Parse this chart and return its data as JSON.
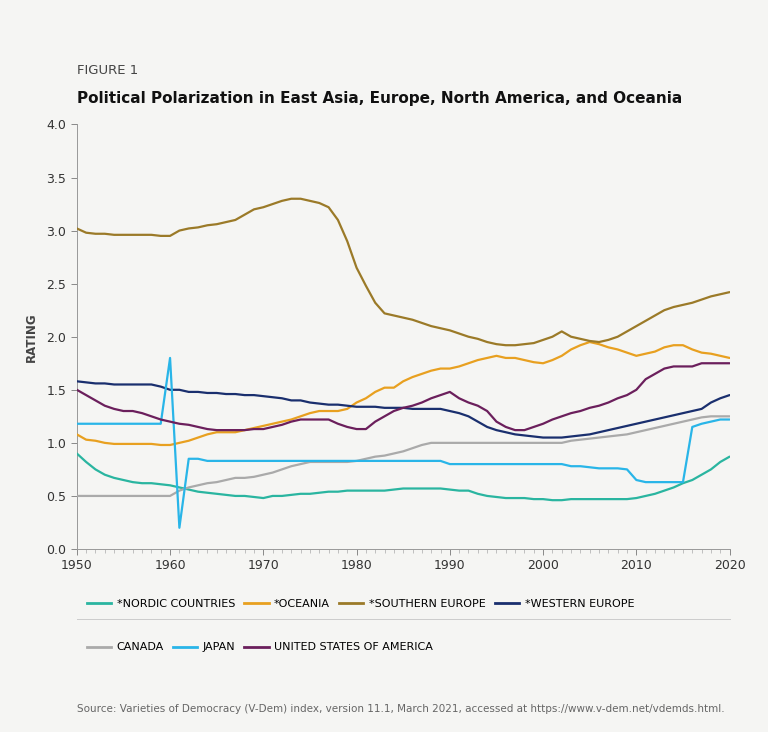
{
  "title_label": "FIGURE 1",
  "title": "Political Polarization in East Asia, Europe, North America, and Oceania",
  "source": "Source: Varieties of Democracy (V-Dem) index, version 11.1, March 2021, accessed at https://www.v-dem.net/vdemds.html.",
  "ylabel": "RATING",
  "xlim": [
    1950,
    2020
  ],
  "ylim": [
    0.0,
    4.0
  ],
  "yticks": [
    0.0,
    0.5,
    1.0,
    1.5,
    2.0,
    2.5,
    3.0,
    3.5,
    4.0
  ],
  "xticks": [
    1950,
    1960,
    1970,
    1980,
    1990,
    2000,
    2010,
    2020
  ],
  "background_color": "#f5f5f3",
  "series": {
    "nordic": {
      "label": "*NORDIC COUNTRIES",
      "color": "#2ab5a0",
      "linewidth": 1.6,
      "years": [
        1950,
        1951,
        1952,
        1953,
        1954,
        1955,
        1956,
        1957,
        1958,
        1959,
        1960,
        1961,
        1962,
        1963,
        1964,
        1965,
        1966,
        1967,
        1968,
        1969,
        1970,
        1971,
        1972,
        1973,
        1974,
        1975,
        1976,
        1977,
        1978,
        1979,
        1980,
        1981,
        1982,
        1983,
        1984,
        1985,
        1986,
        1987,
        1988,
        1989,
        1990,
        1991,
        1992,
        1993,
        1994,
        1995,
        1996,
        1997,
        1998,
        1999,
        2000,
        2001,
        2002,
        2003,
        2004,
        2005,
        2006,
        2007,
        2008,
        2009,
        2010,
        2011,
        2012,
        2013,
        2014,
        2015,
        2016,
        2017,
        2018,
        2019,
        2020
      ],
      "values": [
        0.9,
        0.82,
        0.75,
        0.7,
        0.67,
        0.65,
        0.63,
        0.62,
        0.62,
        0.61,
        0.6,
        0.58,
        0.56,
        0.54,
        0.53,
        0.52,
        0.51,
        0.5,
        0.5,
        0.49,
        0.48,
        0.5,
        0.5,
        0.51,
        0.52,
        0.52,
        0.53,
        0.54,
        0.54,
        0.55,
        0.55,
        0.55,
        0.55,
        0.55,
        0.56,
        0.57,
        0.57,
        0.57,
        0.57,
        0.57,
        0.56,
        0.55,
        0.55,
        0.52,
        0.5,
        0.49,
        0.48,
        0.48,
        0.48,
        0.47,
        0.47,
        0.46,
        0.46,
        0.47,
        0.47,
        0.47,
        0.47,
        0.47,
        0.47,
        0.47,
        0.48,
        0.5,
        0.52,
        0.55,
        0.58,
        0.62,
        0.65,
        0.7,
        0.75,
        0.82,
        0.87
      ]
    },
    "oceania": {
      "label": "*OCEANIA",
      "color": "#e8a020",
      "linewidth": 1.6,
      "years": [
        1950,
        1951,
        1952,
        1953,
        1954,
        1955,
        1956,
        1957,
        1958,
        1959,
        1960,
        1961,
        1962,
        1963,
        1964,
        1965,
        1966,
        1967,
        1968,
        1969,
        1970,
        1971,
        1972,
        1973,
        1974,
        1975,
        1976,
        1977,
        1978,
        1979,
        1980,
        1981,
        1982,
        1983,
        1984,
        1985,
        1986,
        1987,
        1988,
        1989,
        1990,
        1991,
        1992,
        1993,
        1994,
        1995,
        1996,
        1997,
        1998,
        1999,
        2000,
        2001,
        2002,
        2003,
        2004,
        2005,
        2006,
        2007,
        2008,
        2009,
        2010,
        2011,
        2012,
        2013,
        2014,
        2015,
        2016,
        2017,
        2018,
        2019,
        2020
      ],
      "values": [
        1.08,
        1.03,
        1.02,
        1.0,
        0.99,
        0.99,
        0.99,
        0.99,
        0.99,
        0.98,
        0.98,
        1.0,
        1.02,
        1.05,
        1.08,
        1.1,
        1.1,
        1.1,
        1.12,
        1.14,
        1.16,
        1.18,
        1.2,
        1.22,
        1.25,
        1.28,
        1.3,
        1.3,
        1.3,
        1.32,
        1.38,
        1.42,
        1.48,
        1.52,
        1.52,
        1.58,
        1.62,
        1.65,
        1.68,
        1.7,
        1.7,
        1.72,
        1.75,
        1.78,
        1.8,
        1.82,
        1.8,
        1.8,
        1.78,
        1.76,
        1.75,
        1.78,
        1.82,
        1.88,
        1.92,
        1.95,
        1.93,
        1.9,
        1.88,
        1.85,
        1.82,
        1.84,
        1.86,
        1.9,
        1.92,
        1.92,
        1.88,
        1.85,
        1.84,
        1.82,
        1.8
      ]
    },
    "southern_europe": {
      "label": "*SOUTHERN EUROPE",
      "color": "#9b7a28",
      "linewidth": 1.6,
      "years": [
        1950,
        1951,
        1952,
        1953,
        1954,
        1955,
        1956,
        1957,
        1958,
        1959,
        1960,
        1961,
        1962,
        1963,
        1964,
        1965,
        1966,
        1967,
        1968,
        1969,
        1970,
        1971,
        1972,
        1973,
        1974,
        1975,
        1976,
        1977,
        1978,
        1979,
        1980,
        1981,
        1982,
        1983,
        1984,
        1985,
        1986,
        1987,
        1988,
        1989,
        1990,
        1991,
        1992,
        1993,
        1994,
        1995,
        1996,
        1997,
        1998,
        1999,
        2000,
        2001,
        2002,
        2003,
        2004,
        2005,
        2006,
        2007,
        2008,
        2009,
        2010,
        2011,
        2012,
        2013,
        2014,
        2015,
        2016,
        2017,
        2018,
        2019,
        2020
      ],
      "values": [
        3.02,
        2.98,
        2.97,
        2.97,
        2.96,
        2.96,
        2.96,
        2.96,
        2.96,
        2.95,
        2.95,
        3.0,
        3.02,
        3.03,
        3.05,
        3.06,
        3.08,
        3.1,
        3.15,
        3.2,
        3.22,
        3.25,
        3.28,
        3.3,
        3.3,
        3.28,
        3.26,
        3.22,
        3.1,
        2.9,
        2.65,
        2.48,
        2.32,
        2.22,
        2.2,
        2.18,
        2.16,
        2.13,
        2.1,
        2.08,
        2.06,
        2.03,
        2.0,
        1.98,
        1.95,
        1.93,
        1.92,
        1.92,
        1.93,
        1.94,
        1.97,
        2.0,
        2.05,
        2.0,
        1.98,
        1.96,
        1.95,
        1.97,
        2.0,
        2.05,
        2.1,
        2.15,
        2.2,
        2.25,
        2.28,
        2.3,
        2.32,
        2.35,
        2.38,
        2.4,
        2.42
      ]
    },
    "western_europe": {
      "label": "*WESTERN EUROPE",
      "color": "#1a2f6e",
      "linewidth": 1.6,
      "years": [
        1950,
        1951,
        1952,
        1953,
        1954,
        1955,
        1956,
        1957,
        1958,
        1959,
        1960,
        1961,
        1962,
        1963,
        1964,
        1965,
        1966,
        1967,
        1968,
        1969,
        1970,
        1971,
        1972,
        1973,
        1974,
        1975,
        1976,
        1977,
        1978,
        1979,
        1980,
        1981,
        1982,
        1983,
        1984,
        1985,
        1986,
        1987,
        1988,
        1989,
        1990,
        1991,
        1992,
        1993,
        1994,
        1995,
        1996,
        1997,
        1998,
        1999,
        2000,
        2001,
        2002,
        2003,
        2004,
        2005,
        2006,
        2007,
        2008,
        2009,
        2010,
        2011,
        2012,
        2013,
        2014,
        2015,
        2016,
        2017,
        2018,
        2019,
        2020
      ],
      "values": [
        1.58,
        1.57,
        1.56,
        1.56,
        1.55,
        1.55,
        1.55,
        1.55,
        1.55,
        1.53,
        1.5,
        1.5,
        1.48,
        1.48,
        1.47,
        1.47,
        1.46,
        1.46,
        1.45,
        1.45,
        1.44,
        1.43,
        1.42,
        1.4,
        1.4,
        1.38,
        1.37,
        1.36,
        1.36,
        1.35,
        1.34,
        1.34,
        1.34,
        1.33,
        1.33,
        1.33,
        1.32,
        1.32,
        1.32,
        1.32,
        1.3,
        1.28,
        1.25,
        1.2,
        1.15,
        1.12,
        1.1,
        1.08,
        1.07,
        1.06,
        1.05,
        1.05,
        1.05,
        1.06,
        1.07,
        1.08,
        1.1,
        1.12,
        1.14,
        1.16,
        1.18,
        1.2,
        1.22,
        1.24,
        1.26,
        1.28,
        1.3,
        1.32,
        1.38,
        1.42,
        1.45
      ]
    },
    "canada": {
      "label": "CANADA",
      "color": "#aaaaaa",
      "linewidth": 1.6,
      "years": [
        1950,
        1951,
        1952,
        1953,
        1954,
        1955,
        1956,
        1957,
        1958,
        1959,
        1960,
        1961,
        1962,
        1963,
        1964,
        1965,
        1966,
        1967,
        1968,
        1969,
        1970,
        1971,
        1972,
        1973,
        1974,
        1975,
        1976,
        1977,
        1978,
        1979,
        1980,
        1981,
        1982,
        1983,
        1984,
        1985,
        1986,
        1987,
        1988,
        1989,
        1990,
        1991,
        1992,
        1993,
        1994,
        1995,
        1996,
        1997,
        1998,
        1999,
        2000,
        2001,
        2002,
        2003,
        2004,
        2005,
        2006,
        2007,
        2008,
        2009,
        2010,
        2011,
        2012,
        2013,
        2014,
        2015,
        2016,
        2017,
        2018,
        2019,
        2020
      ],
      "values": [
        0.5,
        0.5,
        0.5,
        0.5,
        0.5,
        0.5,
        0.5,
        0.5,
        0.5,
        0.5,
        0.5,
        0.55,
        0.58,
        0.6,
        0.62,
        0.63,
        0.65,
        0.67,
        0.67,
        0.68,
        0.7,
        0.72,
        0.75,
        0.78,
        0.8,
        0.82,
        0.82,
        0.82,
        0.82,
        0.82,
        0.83,
        0.85,
        0.87,
        0.88,
        0.9,
        0.92,
        0.95,
        0.98,
        1.0,
        1.0,
        1.0,
        1.0,
        1.0,
        1.0,
        1.0,
        1.0,
        1.0,
        1.0,
        1.0,
        1.0,
        1.0,
        1.0,
        1.0,
        1.02,
        1.03,
        1.04,
        1.05,
        1.06,
        1.07,
        1.08,
        1.1,
        1.12,
        1.14,
        1.16,
        1.18,
        1.2,
        1.22,
        1.24,
        1.25,
        1.25,
        1.25
      ]
    },
    "japan": {
      "label": "JAPAN",
      "color": "#29b5e8",
      "linewidth": 1.6,
      "years": [
        1950,
        1951,
        1952,
        1953,
        1954,
        1955,
        1956,
        1957,
        1958,
        1959,
        1960,
        1961,
        1962,
        1963,
        1964,
        1965,
        1966,
        1967,
        1968,
        1969,
        1970,
        1971,
        1972,
        1973,
        1974,
        1975,
        1976,
        1977,
        1978,
        1979,
        1980,
        1981,
        1982,
        1983,
        1984,
        1985,
        1986,
        1987,
        1988,
        1989,
        1990,
        1991,
        1992,
        1993,
        1994,
        1995,
        1996,
        1997,
        1998,
        1999,
        2000,
        2001,
        2002,
        2003,
        2004,
        2005,
        2006,
        2007,
        2008,
        2009,
        2010,
        2011,
        2012,
        2013,
        2014,
        2015,
        2016,
        2017,
        2018,
        2019,
        2020
      ],
      "values": [
        1.18,
        1.18,
        1.18,
        1.18,
        1.18,
        1.18,
        1.18,
        1.18,
        1.18,
        1.18,
        1.8,
        0.2,
        0.85,
        0.85,
        0.83,
        0.83,
        0.83,
        0.83,
        0.83,
        0.83,
        0.83,
        0.83,
        0.83,
        0.83,
        0.83,
        0.83,
        0.83,
        0.83,
        0.83,
        0.83,
        0.83,
        0.83,
        0.83,
        0.83,
        0.83,
        0.83,
        0.83,
        0.83,
        0.83,
        0.83,
        0.8,
        0.8,
        0.8,
        0.8,
        0.8,
        0.8,
        0.8,
        0.8,
        0.8,
        0.8,
        0.8,
        0.8,
        0.8,
        0.78,
        0.78,
        0.77,
        0.76,
        0.76,
        0.76,
        0.75,
        0.65,
        0.63,
        0.63,
        0.63,
        0.63,
        0.63,
        1.15,
        1.18,
        1.2,
        1.22,
        1.22
      ]
    },
    "usa": {
      "label": "UNITED STATES OF AMERICA",
      "color": "#6b1f5c",
      "linewidth": 1.6,
      "years": [
        1950,
        1951,
        1952,
        1953,
        1954,
        1955,
        1956,
        1957,
        1958,
        1959,
        1960,
        1961,
        1962,
        1963,
        1964,
        1965,
        1966,
        1967,
        1968,
        1969,
        1970,
        1971,
        1972,
        1973,
        1974,
        1975,
        1976,
        1977,
        1978,
        1979,
        1980,
        1981,
        1982,
        1983,
        1984,
        1985,
        1986,
        1987,
        1988,
        1989,
        1990,
        1991,
        1992,
        1993,
        1994,
        1995,
        1996,
        1997,
        1998,
        1999,
        2000,
        2001,
        2002,
        2003,
        2004,
        2005,
        2006,
        2007,
        2008,
        2009,
        2010,
        2011,
        2012,
        2013,
        2014,
        2015,
        2016,
        2017,
        2018,
        2019,
        2020
      ],
      "values": [
        1.5,
        1.45,
        1.4,
        1.35,
        1.32,
        1.3,
        1.3,
        1.28,
        1.25,
        1.22,
        1.2,
        1.18,
        1.17,
        1.15,
        1.13,
        1.12,
        1.12,
        1.12,
        1.12,
        1.13,
        1.13,
        1.15,
        1.17,
        1.2,
        1.22,
        1.22,
        1.22,
        1.22,
        1.18,
        1.15,
        1.13,
        1.13,
        1.2,
        1.25,
        1.3,
        1.33,
        1.35,
        1.38,
        1.42,
        1.45,
        1.48,
        1.42,
        1.38,
        1.35,
        1.3,
        1.2,
        1.15,
        1.12,
        1.12,
        1.15,
        1.18,
        1.22,
        1.25,
        1.28,
        1.3,
        1.33,
        1.35,
        1.38,
        1.42,
        1.45,
        1.5,
        1.6,
        1.65,
        1.7,
        1.72,
        1.72,
        1.72,
        1.75,
        1.75,
        1.75,
        1.75
      ]
    }
  }
}
